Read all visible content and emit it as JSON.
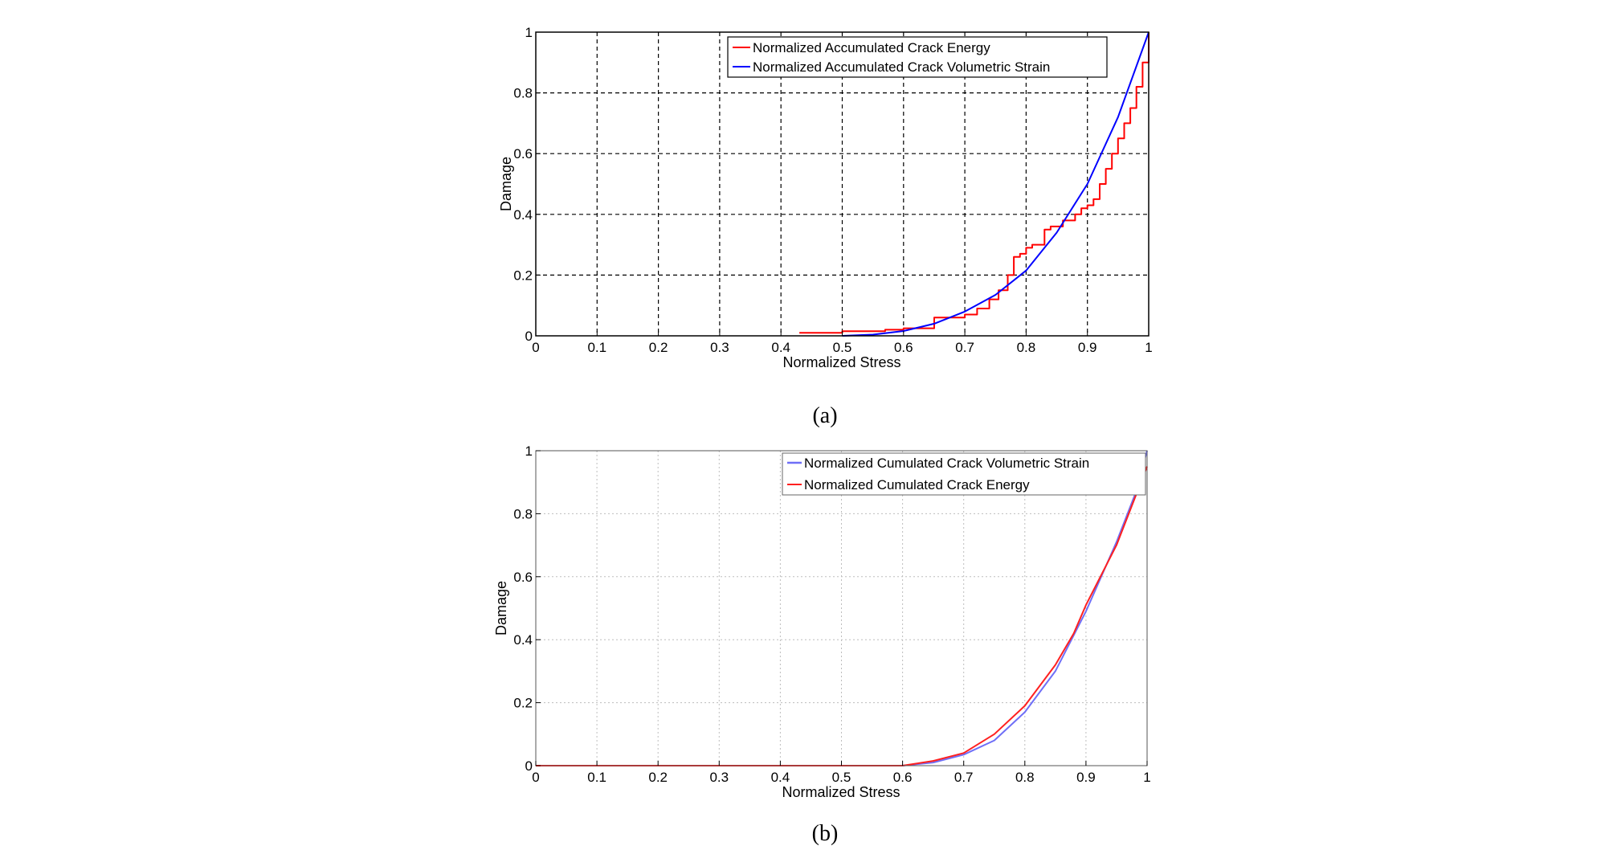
{
  "chart_data": [
    {
      "id": "a",
      "type": "line",
      "caption": "(a)",
      "xlabel": "Normalized Stress",
      "ylabel": "Damage",
      "xlim": [
        0,
        1
      ],
      "ylim": [
        0,
        1
      ],
      "xticks": [
        "0",
        "0.1",
        "0.2",
        "0.3",
        "0.4",
        "0.5",
        "0.6",
        "0.7",
        "0.8",
        "0.9",
        "1"
      ],
      "yticks": [
        "0",
        "0.2",
        "0.4",
        "0.6",
        "0.8",
        "1"
      ],
      "grid": "dashed",
      "legend_position": "top-right",
      "series": [
        {
          "name": "Normalized Accumulated Crack Energy",
          "color": "#ff0000",
          "step": true,
          "x": [
            0.43,
            0.5,
            0.57,
            0.6,
            0.65,
            0.7,
            0.72,
            0.74,
            0.755,
            0.77,
            0.78,
            0.79,
            0.8,
            0.81,
            0.83,
            0.84,
            0.86,
            0.88,
            0.89,
            0.9,
            0.91,
            0.92,
            0.93,
            0.94,
            0.95,
            0.96,
            0.97,
            0.98,
            0.99,
            1.0
          ],
          "y": [
            0.01,
            0.015,
            0.02,
            0.025,
            0.06,
            0.07,
            0.09,
            0.12,
            0.15,
            0.2,
            0.26,
            0.27,
            0.29,
            0.3,
            0.35,
            0.36,
            0.38,
            0.4,
            0.42,
            0.43,
            0.45,
            0.5,
            0.55,
            0.6,
            0.65,
            0.7,
            0.75,
            0.82,
            0.9,
            1.0
          ]
        },
        {
          "name": "Normalized Accumulated Crack Volumetric Strain",
          "color": "#0000ff",
          "step": false,
          "x": [
            0.5,
            0.55,
            0.6,
            0.65,
            0.7,
            0.75,
            0.8,
            0.85,
            0.9,
            0.95,
            1.0
          ],
          "y": [
            0.0,
            0.004,
            0.016,
            0.04,
            0.08,
            0.135,
            0.215,
            0.34,
            0.5,
            0.72,
            1.0
          ]
        }
      ]
    },
    {
      "id": "b",
      "type": "line",
      "caption": "(b)",
      "xlabel": "Normalized Stress",
      "ylabel": "Damage",
      "xlim": [
        0,
        1
      ],
      "ylim": [
        0,
        1
      ],
      "xticks": [
        "0",
        "0.1",
        "0.2",
        "0.3",
        "0.4",
        "0.5",
        "0.6",
        "0.7",
        "0.8",
        "0.9",
        "1"
      ],
      "yticks": [
        "0",
        "0.2",
        "0.4",
        "0.6",
        "0.8",
        "1"
      ],
      "grid": "dotted",
      "legend_position": "top-right",
      "series": [
        {
          "name": "Normalized Cumulated Crack Volumetric Strain",
          "color": "#6f6ff7",
          "step": false,
          "x": [
            0.0,
            0.6,
            0.65,
            0.7,
            0.75,
            0.8,
            0.85,
            0.9,
            0.95,
            0.98,
            1.0
          ],
          "y": [
            0.0,
            0.0,
            0.01,
            0.035,
            0.08,
            0.17,
            0.3,
            0.49,
            0.71,
            0.86,
            1.0
          ]
        },
        {
          "name": "Normalized Cumulated Crack Energy",
          "color": "#ff2020",
          "step": false,
          "x": [
            0.0,
            0.6,
            0.65,
            0.7,
            0.75,
            0.8,
            0.85,
            0.88,
            0.9,
            0.95,
            0.98,
            1.0
          ],
          "y": [
            0.0,
            0.0,
            0.015,
            0.04,
            0.1,
            0.19,
            0.32,
            0.42,
            0.51,
            0.7,
            0.85,
            0.95
          ]
        }
      ]
    }
  ]
}
